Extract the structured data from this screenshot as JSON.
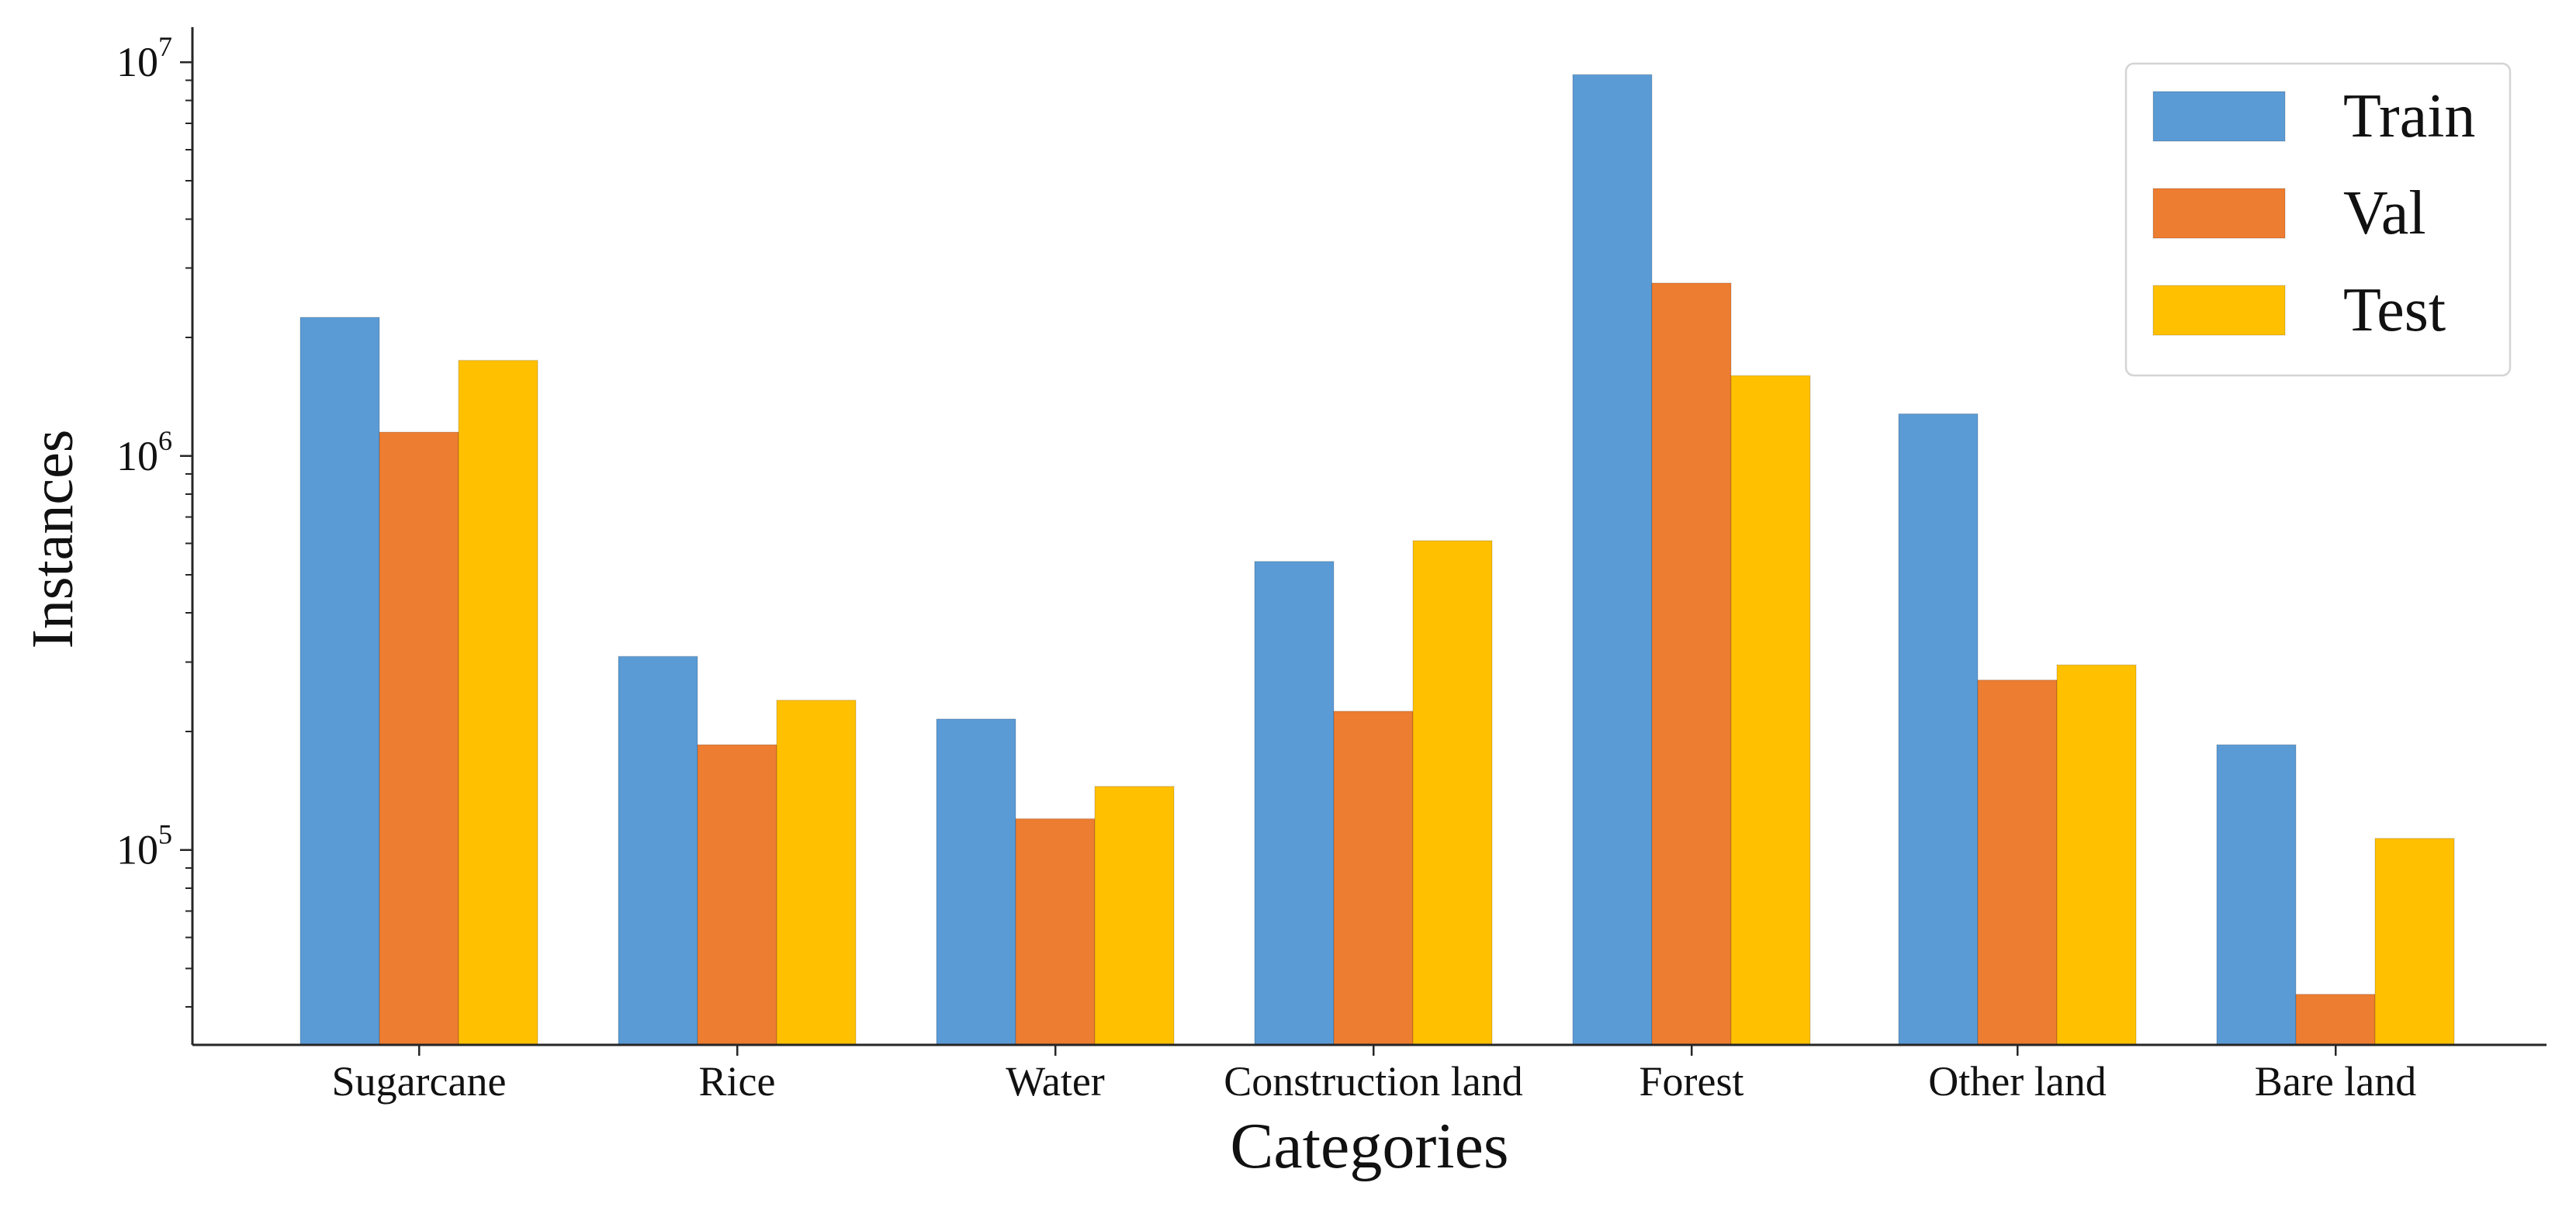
{
  "chart_data": {
    "type": "bar",
    "title": "",
    "xlabel": "Categories",
    "ylabel": "Instances",
    "yscale": "log",
    "ylim": [
      32000,
      12000000
    ],
    "yticks": [
      {
        "value": 100000,
        "base": "10",
        "exp": "5"
      },
      {
        "value": 1000000,
        "base": "10",
        "exp": "6"
      },
      {
        "value": 10000000,
        "base": "10",
        "exp": "7"
      }
    ],
    "categories": [
      "Sugarcane",
      "Rice",
      "Water",
      "Construction land",
      "Forest",
      "Other land",
      "Bare land"
    ],
    "series": [
      {
        "name": "Train",
        "color": "#5B9BD5",
        "values": [
          2250000,
          310000,
          215000,
          540000,
          9300000,
          1280000,
          185000
        ]
      },
      {
        "name": "Val",
        "color": "#ED7D31",
        "values": [
          1150000,
          185000,
          120000,
          225000,
          2750000,
          270000,
          43000
        ]
      },
      {
        "name": "Test",
        "color": "#FFC000",
        "values": [
          1750000,
          240000,
          145000,
          610000,
          1600000,
          295000,
          107000
        ]
      }
    ],
    "legend": {
      "position": "top-right"
    },
    "grid": false
  }
}
